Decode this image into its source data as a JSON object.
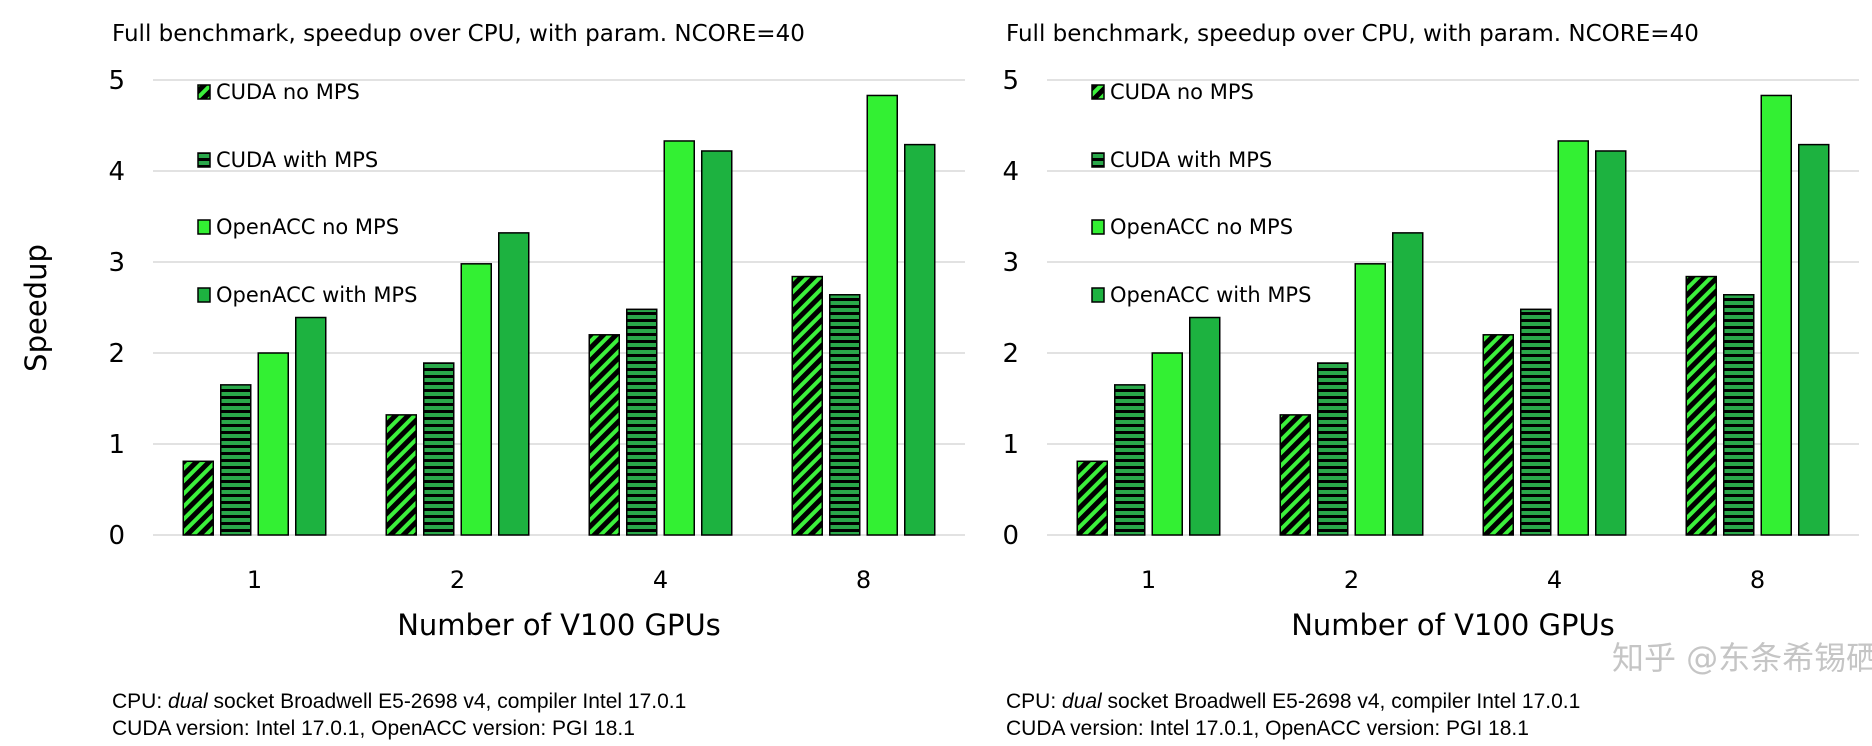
{
  "colors": {
    "cuda_no_mps": "#3cf03c",
    "cuda_with_mps": "#2aa84a",
    "openacc_no_mps": "#33f033",
    "openacc_with_mps": "#1db240",
    "grid": "#d9d9d9"
  },
  "chart_data": [
    {
      "type": "bar",
      "title": "Full benchmark, speedup over CPU, with param. NCORE=40",
      "xlabel": "Number of V100 GPUs",
      "ylabel": "Speedup",
      "ylim": [
        0,
        5
      ],
      "yticks": [
        "0",
        "1",
        "2",
        "3",
        "4",
        "5"
      ],
      "grid": true,
      "legend_placement": "top-left",
      "categories": [
        "1",
        "2",
        "4",
        "8"
      ],
      "series": [
        {
          "name": "CUDA no MPS",
          "pattern": "diagonal",
          "values": [
            0.81,
            1.32,
            2.2,
            2.84
          ]
        },
        {
          "name": "CUDA with MPS",
          "pattern": "horizontal",
          "values": [
            1.65,
            1.89,
            2.48,
            2.64
          ]
        },
        {
          "name": "OpenACC no MPS",
          "pattern": "solid-light",
          "values": [
            2.0,
            2.98,
            4.33,
            4.83
          ]
        },
        {
          "name": "OpenACC with MPS",
          "pattern": "solid-dark",
          "values": [
            2.39,
            3.32,
            4.22,
            4.29
          ]
        }
      ],
      "footer": {
        "line1_prefix": "CPU: ",
        "line1_emph": "dual",
        "line1_suffix": " socket Broadwell E5-2698 v4, compiler Intel 17.0.1",
        "line2": "CUDA version: Intel 17.0.1, OpenACC version: PGI 18.1"
      }
    },
    {
      "type": "bar",
      "title": "Full benchmark, speedup over CPU, with param. NCORE=40",
      "xlabel": "Number of V100 GPUs",
      "ylabel": "",
      "ylim": [
        0,
        5
      ],
      "yticks": [
        "0",
        "1",
        "2",
        "3",
        "4",
        "5"
      ],
      "grid": true,
      "legend_placement": "top-left",
      "categories": [
        "1",
        "2",
        "4",
        "8"
      ],
      "series": [
        {
          "name": "CUDA no MPS",
          "pattern": "diagonal",
          "values": [
            0.81,
            1.32,
            2.2,
            2.84
          ]
        },
        {
          "name": "CUDA with MPS",
          "pattern": "horizontal",
          "values": [
            1.65,
            1.89,
            2.48,
            2.64
          ]
        },
        {
          "name": "OpenACC no MPS",
          "pattern": "solid-light",
          "values": [
            2.0,
            2.98,
            4.33,
            4.83
          ]
        },
        {
          "name": "OpenACC with MPS",
          "pattern": "solid-dark",
          "values": [
            2.39,
            3.32,
            4.22,
            4.29
          ]
        }
      ],
      "footer": {
        "line1_prefix": "CPU: ",
        "line1_emph": "dual",
        "line1_suffix": " socket Broadwell E5-2698 v4, compiler Intel 17.0.1",
        "line2": "CUDA version: Intel 17.0.1, OpenACC version: PGI 18.1"
      }
    }
  ],
  "watermark": "知乎 @东条希锡硒"
}
